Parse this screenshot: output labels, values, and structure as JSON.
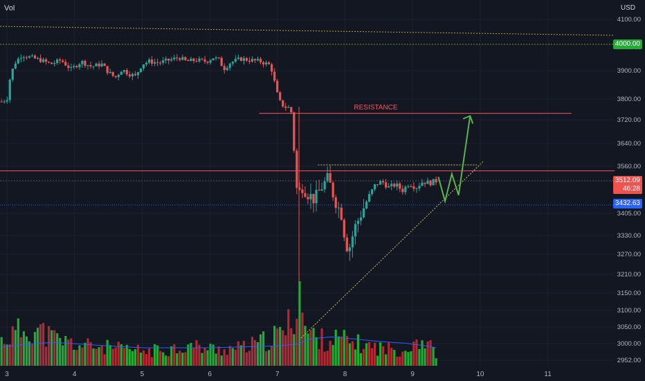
{
  "header": {
    "vol_label": "Vol",
    "currency": "USD"
  },
  "price_badges": {
    "level": "4000.00",
    "last": "3512.09",
    "countdown": "46:28",
    "marker": "3432.63"
  },
  "annotations": {
    "resistance": "RESISTANCE"
  },
  "colors": {
    "background": "#131722",
    "up": "#26a69a",
    "down": "#ef5350",
    "vol_up": "#22ab35",
    "vol_down": "#b22833",
    "resistance": "#f7525f",
    "trendline": "#c8c85a",
    "arrow": "#5bb450",
    "avg_line": "#2962ff"
  },
  "chart_data": {
    "type": "candlestick",
    "x_ticks": [
      "3",
      "4",
      "5",
      "6",
      "7",
      "8",
      "9",
      "10",
      "11"
    ],
    "y_ticks": [
      "4100.00",
      "4000.00",
      "3900.00",
      "3800.00",
      "3720.00",
      "3640.00",
      "3560.00",
      "3405.00",
      "3330.00",
      "3270.00",
      "3210.00",
      "3150.00",
      "3100.00",
      "3050.00",
      "3000.00",
      "2952.00"
    ],
    "y_tick_values": [
      4100,
      4000,
      3900,
      3800,
      3720,
      3640,
      3560,
      3405,
      3330,
      3270,
      3210,
      3150,
      3100,
      3050,
      3000,
      2952
    ],
    "ylim": [
      2940,
      4140
    ],
    "xlim": [
      2.9,
      11.9
    ],
    "resistance_level": 3745,
    "level_4000": 4000,
    "last_price": 3512.09,
    "marker_price": 3432.63,
    "close_path": [
      [
        2.92,
        3790
      ],
      [
        3.0,
        3800
      ],
      [
        3.05,
        3880
      ],
      [
        3.12,
        3930
      ],
      [
        3.22,
        3960
      ],
      [
        3.35,
        3950
      ],
      [
        3.5,
        3940
      ],
      [
        3.65,
        3925
      ],
      [
        3.8,
        3940
      ],
      [
        3.95,
        3905
      ],
      [
        4.1,
        3935
      ],
      [
        4.25,
        3915
      ],
      [
        4.4,
        3925
      ],
      [
        4.5,
        3895
      ],
      [
        4.6,
        3875
      ],
      [
        4.7,
        3905
      ],
      [
        4.8,
        3890
      ],
      [
        4.9,
        3880
      ],
      [
        5.0,
        3925
      ],
      [
        5.1,
        3935
      ],
      [
        5.25,
        3930
      ],
      [
        5.4,
        3940
      ],
      [
        5.55,
        3950
      ],
      [
        5.65,
        3935
      ],
      [
        5.8,
        3940
      ],
      [
        5.95,
        3935
      ],
      [
        6.05,
        3950
      ],
      [
        6.15,
        3940
      ],
      [
        6.2,
        3905
      ],
      [
        6.3,
        3930
      ],
      [
        6.45,
        3945
      ],
      [
        6.6,
        3940
      ],
      [
        6.75,
        3935
      ],
      [
        6.9,
        3920
      ],
      [
        7.02,
        3795
      ],
      [
        7.1,
        3770
      ],
      [
        7.2,
        3765
      ],
      [
        7.3,
        3445
      ],
      [
        7.35,
        3500
      ],
      [
        7.45,
        3470
      ],
      [
        7.55,
        3450
      ],
      [
        7.65,
        3490
      ],
      [
        7.75,
        3520
      ],
      [
        7.85,
        3450
      ],
      [
        7.95,
        3400
      ],
      [
        8.0,
        3320
      ],
      [
        8.05,
        3280
      ],
      [
        8.15,
        3360
      ],
      [
        8.25,
        3410
      ],
      [
        8.35,
        3460
      ],
      [
        8.45,
        3500
      ],
      [
        8.55,
        3510
      ],
      [
        8.65,
        3490
      ],
      [
        8.75,
        3500
      ],
      [
        8.85,
        3480
      ],
      [
        8.95,
        3505
      ],
      [
        9.05,
        3490
      ],
      [
        9.15,
        3510
      ],
      [
        9.25,
        3505
      ],
      [
        9.35,
        3512
      ]
    ],
    "volume_ylim": [
      0,
      100
    ],
    "volume_profile": [
      [
        2.92,
        28
      ],
      [
        3.1,
        35
      ],
      [
        3.3,
        42
      ],
      [
        3.5,
        38
      ],
      [
        3.7,
        30
      ],
      [
        3.9,
        26
      ],
      [
        4.1,
        22
      ],
      [
        4.3,
        22
      ],
      [
        4.5,
        20
      ],
      [
        4.7,
        18
      ],
      [
        4.9,
        17
      ],
      [
        5.1,
        16
      ],
      [
        5.3,
        18
      ],
      [
        5.5,
        20
      ],
      [
        5.7,
        22
      ],
      [
        5.9,
        20
      ],
      [
        6.1,
        18
      ],
      [
        6.3,
        19
      ],
      [
        6.5,
        20
      ],
      [
        6.7,
        24
      ],
      [
        6.9,
        30
      ],
      [
        7.1,
        38
      ],
      [
        7.25,
        55
      ],
      [
        7.32,
        100
      ],
      [
        7.4,
        40
      ],
      [
        7.55,
        32
      ],
      [
        7.7,
        28
      ],
      [
        7.9,
        30
      ],
      [
        8.1,
        26
      ],
      [
        8.3,
        22
      ],
      [
        8.5,
        20
      ],
      [
        8.7,
        18
      ],
      [
        8.9,
        18
      ],
      [
        9.05,
        30
      ],
      [
        9.2,
        26
      ],
      [
        9.35,
        14
      ]
    ],
    "volume_avg": [
      [
        2.92,
        21
      ],
      [
        3.3,
        24
      ],
      [
        3.7,
        26
      ],
      [
        4.1,
        24
      ],
      [
        4.5,
        22
      ],
      [
        5.0,
        20
      ],
      [
        5.5,
        20
      ],
      [
        6.0,
        20
      ],
      [
        6.5,
        21
      ],
      [
        7.0,
        22
      ],
      [
        7.3,
        24
      ],
      [
        7.5,
        30
      ],
      [
        7.8,
        32
      ],
      [
        8.1,
        30
      ],
      [
        8.5,
        27
      ],
      [
        8.9,
        25
      ],
      [
        9.2,
        22
      ],
      [
        9.35,
        20
      ]
    ]
  }
}
